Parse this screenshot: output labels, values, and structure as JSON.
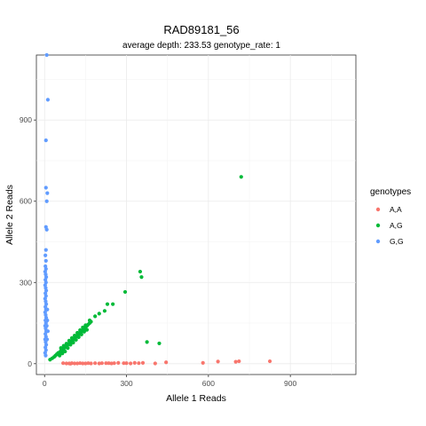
{
  "chart_data": {
    "type": "scatter",
    "title": "RAD89181_56",
    "subtitle": "average depth:  233.53  genotype_rate:  1",
    "xlabel": "Allele 1 Reads",
    "ylabel": "Allele 2 Reads",
    "xlim": [
      -30,
      1140
    ],
    "ylim": [
      -40,
      1140
    ],
    "xticks": [
      0,
      300,
      600,
      900
    ],
    "yticks": [
      0,
      300,
      600,
      900
    ],
    "grid": true,
    "legend": {
      "title": "genotypes",
      "position": "right"
    },
    "series": [
      {
        "name": "A,A",
        "color": "#F8766D",
        "points": [
          [
            68,
            2
          ],
          [
            80,
            1
          ],
          [
            90,
            1
          ],
          [
            95,
            0
          ],
          [
            100,
            2
          ],
          [
            110,
            1
          ],
          [
            120,
            1
          ],
          [
            130,
            2
          ],
          [
            140,
            1
          ],
          [
            150,
            1
          ],
          [
            160,
            2
          ],
          [
            170,
            1
          ],
          [
            185,
            2
          ],
          [
            200,
            1
          ],
          [
            210,
            2
          ],
          [
            225,
            2
          ],
          [
            235,
            2
          ],
          [
            245,
            1
          ],
          [
            255,
            2
          ],
          [
            270,
            3
          ],
          [
            290,
            2
          ],
          [
            300,
            2
          ],
          [
            315,
            1
          ],
          [
            330,
            3
          ],
          [
            345,
            2
          ],
          [
            360,
            3
          ],
          [
            405,
            1
          ],
          [
            445,
            5
          ],
          [
            580,
            3
          ],
          [
            635,
            8
          ],
          [
            700,
            7
          ],
          [
            712,
            9
          ],
          [
            825,
            9
          ]
        ]
      },
      {
        "name": "A,G",
        "color": "#00BA38",
        "points": [
          [
            20,
            15
          ],
          [
            28,
            20
          ],
          [
            35,
            25
          ],
          [
            40,
            30
          ],
          [
            45,
            35
          ],
          [
            50,
            40
          ],
          [
            55,
            42
          ],
          [
            60,
            48
          ],
          [
            65,
            50
          ],
          [
            70,
            55
          ],
          [
            75,
            60
          ],
          [
            80,
            65
          ],
          [
            85,
            70
          ],
          [
            90,
            75
          ],
          [
            95,
            80
          ],
          [
            100,
            85
          ],
          [
            105,
            90
          ],
          [
            110,
            95
          ],
          [
            115,
            100
          ],
          [
            120,
            105
          ],
          [
            125,
            110
          ],
          [
            130,
            115
          ],
          [
            135,
            120
          ],
          [
            140,
            125
          ],
          [
            145,
            130
          ],
          [
            150,
            135
          ],
          [
            155,
            140
          ],
          [
            160,
            145
          ],
          [
            165,
            150
          ],
          [
            170,
            155
          ],
          [
            55,
            30
          ],
          [
            65,
            38
          ],
          [
            75,
            45
          ],
          [
            85,
            58
          ],
          [
            95,
            70
          ],
          [
            105,
            78
          ],
          [
            115,
            88
          ],
          [
            125,
            98
          ],
          [
            135,
            108
          ],
          [
            145,
            118
          ],
          [
            155,
            125
          ],
          [
            60,
            58
          ],
          [
            70,
            66
          ],
          [
            80,
            74
          ],
          [
            90,
            85
          ],
          [
            100,
            95
          ],
          [
            110,
            104
          ],
          [
            120,
            114
          ],
          [
            130,
            124
          ],
          [
            140,
            134
          ],
          [
            150,
            142
          ],
          [
            165,
            160
          ],
          [
            185,
            175
          ],
          [
            200,
            185
          ],
          [
            220,
            195
          ],
          [
            230,
            220
          ],
          [
            250,
            220
          ],
          [
            295,
            265
          ],
          [
            350,
            340
          ],
          [
            355,
            320
          ],
          [
            375,
            80
          ],
          [
            420,
            75
          ],
          [
            720,
            690
          ]
        ]
      },
      {
        "name": "G,G",
        "color": "#619CFF",
        "points": [
          [
            8,
            1140
          ],
          [
            12,
            975
          ],
          [
            5,
            825
          ],
          [
            5,
            650
          ],
          [
            10,
            630
          ],
          [
            8,
            600
          ],
          [
            5,
            505
          ],
          [
            8,
            495
          ],
          [
            5,
            420
          ],
          [
            3,
            400
          ],
          [
            5,
            380
          ],
          [
            3,
            360
          ],
          [
            5,
            350
          ],
          [
            2,
            340
          ],
          [
            4,
            330
          ],
          [
            6,
            320
          ],
          [
            3,
            310
          ],
          [
            5,
            300
          ],
          [
            2,
            290
          ],
          [
            4,
            280
          ],
          [
            6,
            270
          ],
          [
            3,
            260
          ],
          [
            5,
            250
          ],
          [
            2,
            240
          ],
          [
            4,
            230
          ],
          [
            6,
            220
          ],
          [
            3,
            210
          ],
          [
            5,
            200
          ],
          [
            2,
            190
          ],
          [
            4,
            180
          ],
          [
            6,
            170
          ],
          [
            3,
            160
          ],
          [
            5,
            150
          ],
          [
            2,
            140
          ],
          [
            4,
            130
          ],
          [
            6,
            120
          ],
          [
            3,
            110
          ],
          [
            5,
            100
          ],
          [
            2,
            90
          ],
          [
            4,
            80
          ],
          [
            6,
            70
          ],
          [
            3,
            60
          ],
          [
            5,
            50
          ],
          [
            2,
            40
          ],
          [
            4,
            30
          ],
          [
            8,
            140
          ],
          [
            10,
            160
          ],
          [
            10,
            200
          ],
          [
            12,
            120
          ],
          [
            9,
            90
          ]
        ]
      }
    ]
  }
}
